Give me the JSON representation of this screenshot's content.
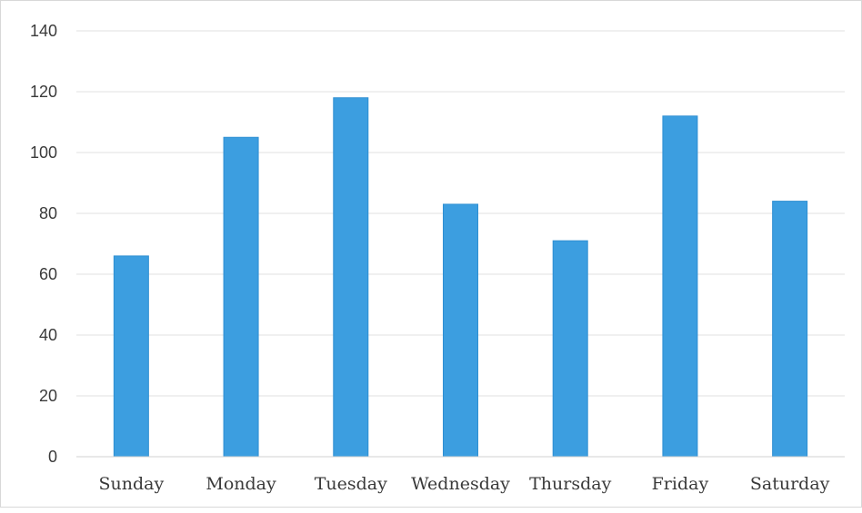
{
  "chart_data": {
    "type": "bar",
    "title": "",
    "xlabel": "",
    "ylabel": "",
    "categories": [
      "Sunday",
      "Monday",
      "Tuesday",
      "Wednesday",
      "Thursday",
      "Friday",
      "Saturday"
    ],
    "values": [
      66,
      105,
      118,
      83,
      71,
      112,
      84
    ],
    "ylim": [
      0,
      140
    ],
    "yticks": [
      0,
      20,
      40,
      60,
      80,
      100,
      120,
      140
    ],
    "ytick_labels": [
      "0",
      "20",
      "40",
      "60",
      "80",
      "100",
      "120",
      "140"
    ],
    "grid": true,
    "legend": "none",
    "colors": {
      "bar": "#3c9ee0",
      "bar_edge": "#2f8fd2",
      "grid": "#e2e2e2",
      "axis": "#d0d0d0",
      "text": "#3a3a3a"
    }
  }
}
